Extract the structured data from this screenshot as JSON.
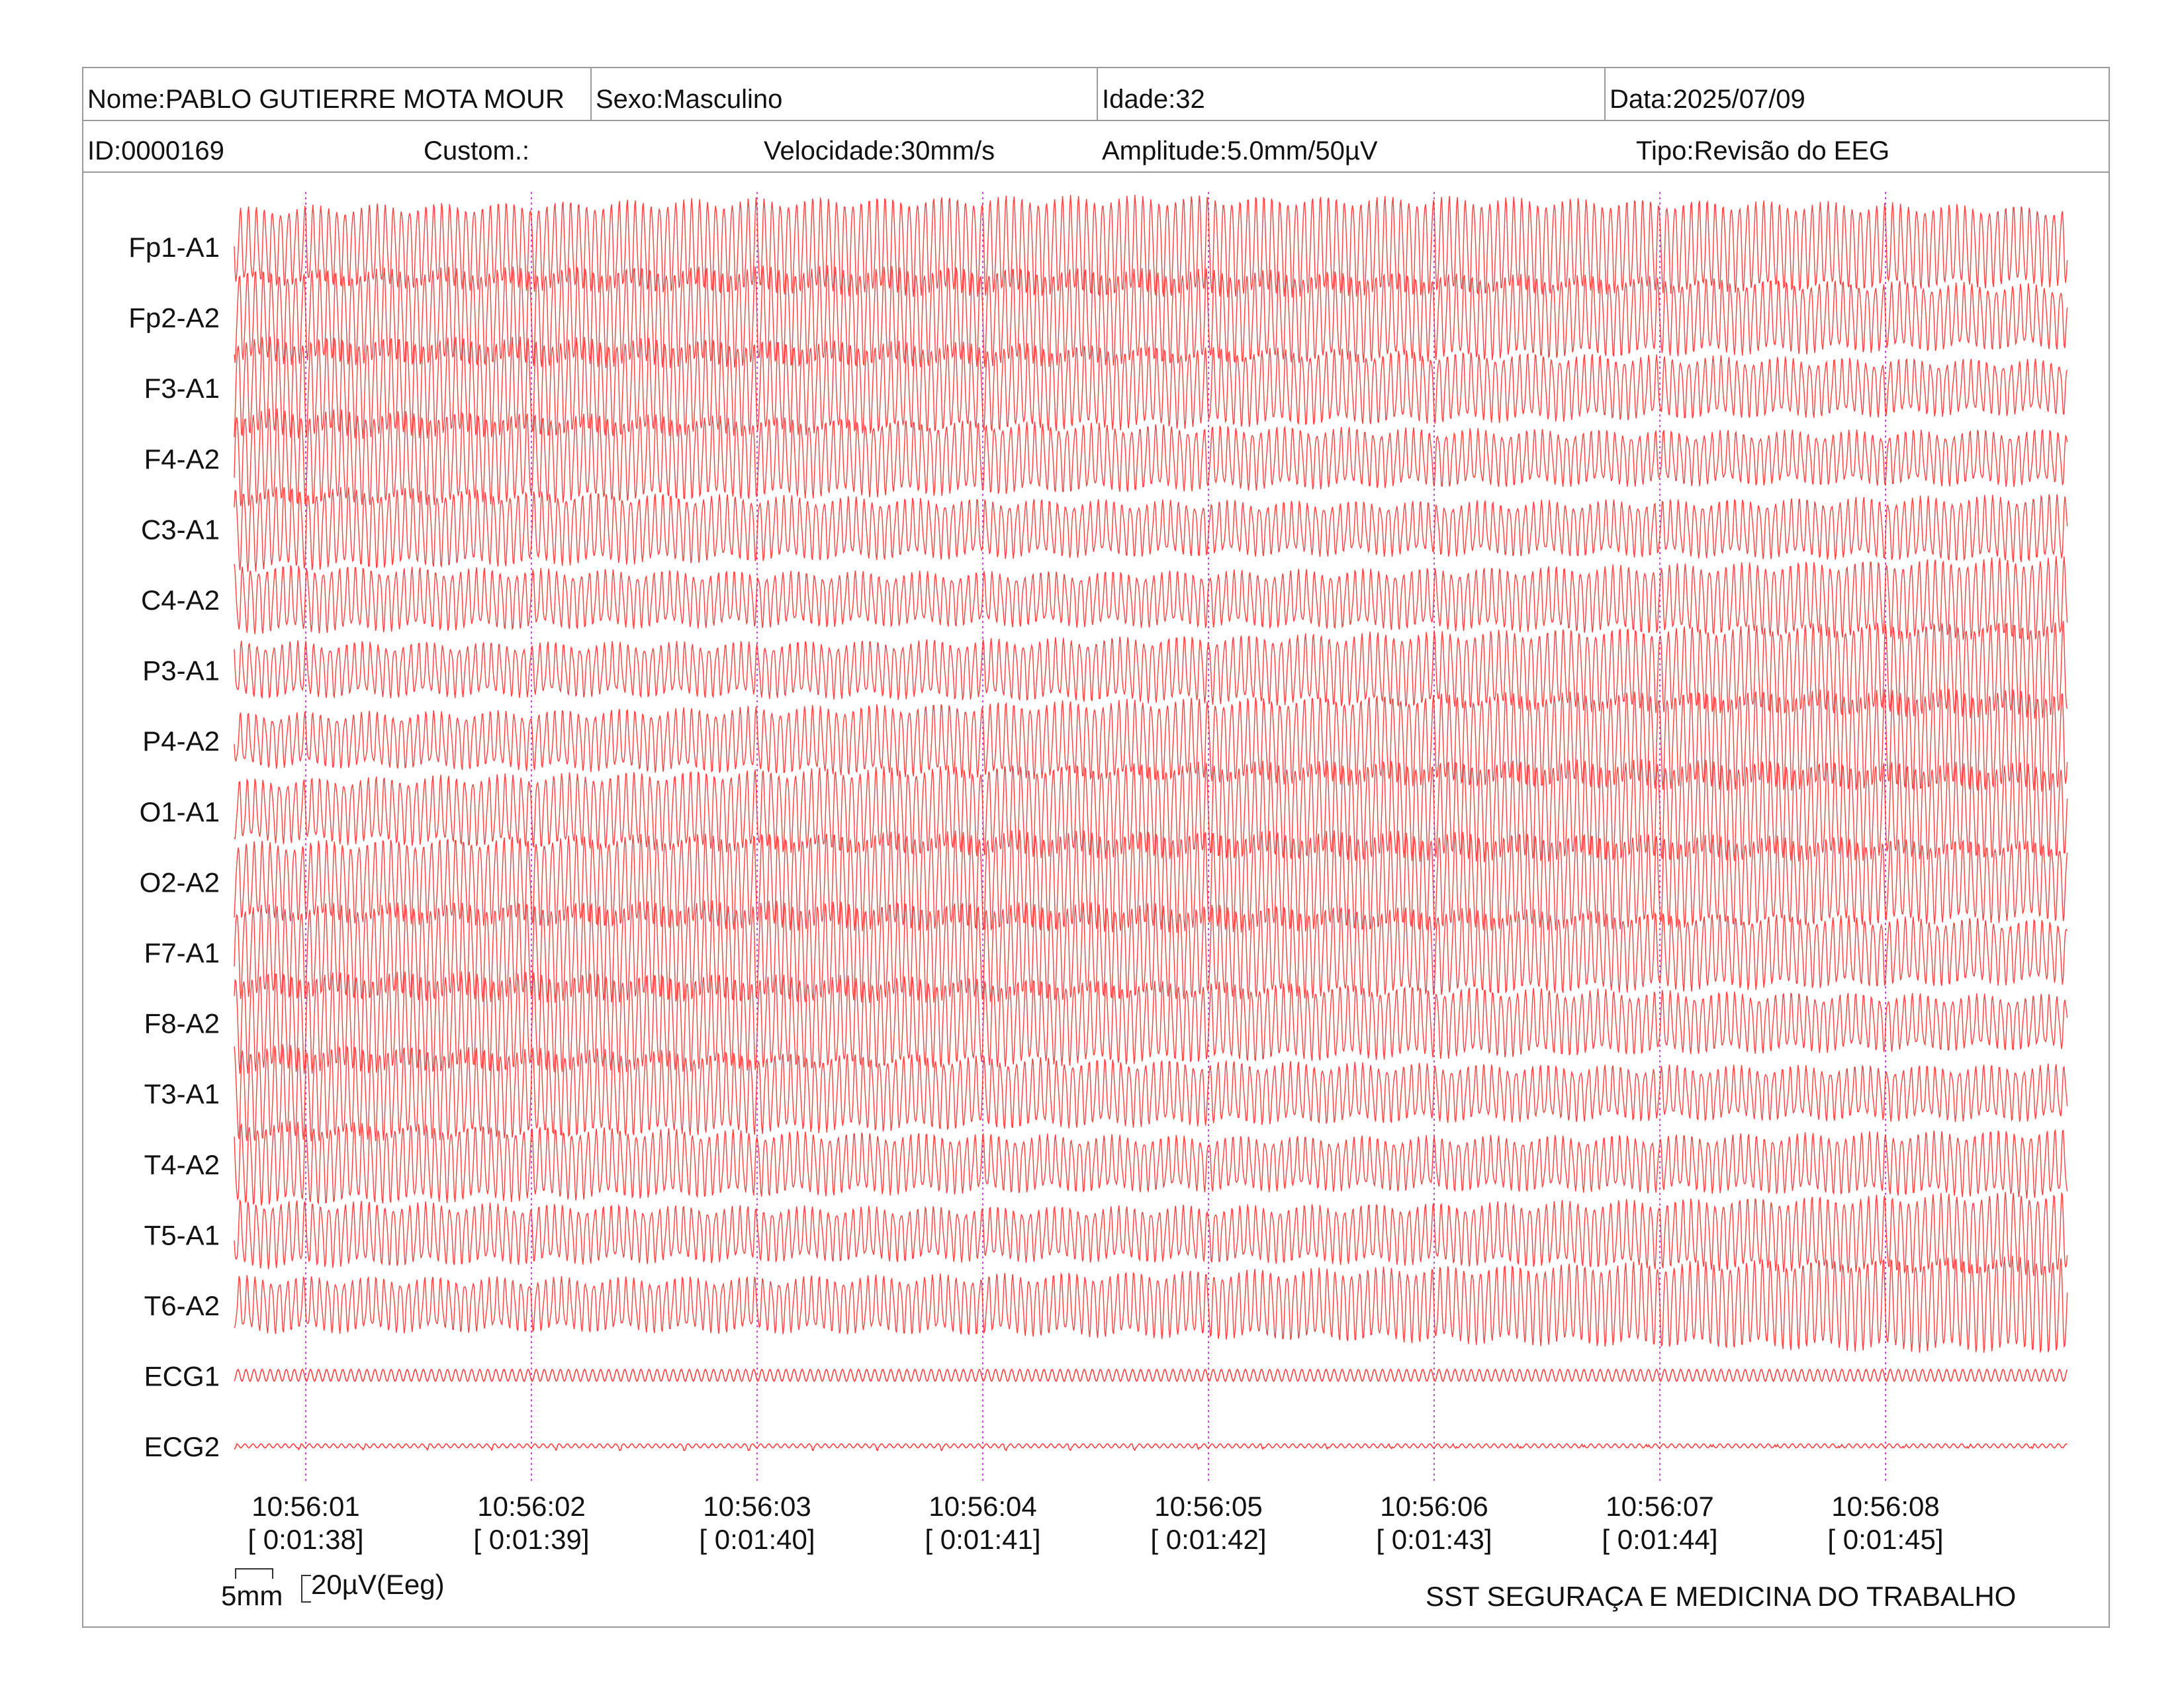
{
  "header": {
    "row1": {
      "name": "Nome:PABLO GUTIERRE MOTA MOUR",
      "sex": "Sexo:Masculino",
      "age": "Idade:32",
      "date": "Data:2025/07/09"
    },
    "row2": {
      "id": "ID:0000169",
      "custom": "Custom.:",
      "speed": "Velocidade:30mm/s",
      "amplitude": "Amplitude:5.0mm/50µV",
      "type": "Tipo:Revisão do EEG"
    }
  },
  "chart_data": {
    "type": "line",
    "title": "",
    "xlabel": "",
    "ylabel": "",
    "channels": [
      "Fp1-A1",
      "Fp2-A2",
      "F3-A1",
      "F4-A2",
      "C3-A1",
      "C4-A2",
      "P3-A1",
      "P4-A2",
      "O1-A1",
      "O2-A2",
      "F7-A1",
      "F8-A2",
      "T3-A1",
      "T4-A2",
      "T5-A1",
      "T6-A2",
      "ECG1",
      "ECG2"
    ],
    "time_ticks": [
      {
        "clock": "10:56:01",
        "elapsed": "[ 0:01:38]"
      },
      {
        "clock": "10:56:02",
        "elapsed": "[ 0:01:39]"
      },
      {
        "clock": "10:56:03",
        "elapsed": "[ 0:01:40]"
      },
      {
        "clock": "10:56:04",
        "elapsed": "[ 0:01:41]"
      },
      {
        "clock": "10:56:05",
        "elapsed": "[ 0:01:42]"
      },
      {
        "clock": "10:56:06",
        "elapsed": "[ 0:01:43]"
      },
      {
        "clock": "10:56:07",
        "elapsed": "[ 0:01:44]"
      },
      {
        "clock": "10:56:08",
        "elapsed": "[ 0:01:45]"
      }
    ],
    "seconds_shown": 8.1,
    "eeg_frequency_hz": 28,
    "ecg_frequency_hz": 28,
    "trace_color": "#ff2a2a",
    "tick_line_color": "#cc44dd",
    "grid": false
  },
  "scale": {
    "time_label": "5mm",
    "amp_label": "20µV(Eeg)"
  },
  "footer": {
    "company": "SST SEGURAÇA E MEDICINA DO TRABALHO"
  }
}
